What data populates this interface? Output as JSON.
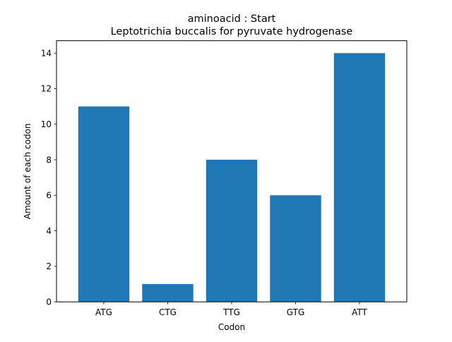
{
  "chart_data": {
    "type": "bar",
    "title": "aminoacid : Start",
    "subtitle": "Leptotrichia buccalis for pyruvate hydrogenase",
    "xlabel": "Codon",
    "ylabel": "Amount of each codon",
    "categories": [
      "ATG",
      "CTG",
      "TTG",
      "GTG",
      "ATT"
    ],
    "values": [
      11,
      1,
      8,
      6,
      14
    ],
    "ylim": [
      0,
      14.7
    ],
    "yticks": [
      0,
      2,
      4,
      6,
      8,
      10,
      12,
      14
    ],
    "ytick_labels": [
      "0",
      "2",
      "4",
      "6",
      "8",
      "10",
      "12",
      "14"
    ],
    "bar_color": "#1f77b4",
    "grid": false,
    "legend": "none"
  }
}
